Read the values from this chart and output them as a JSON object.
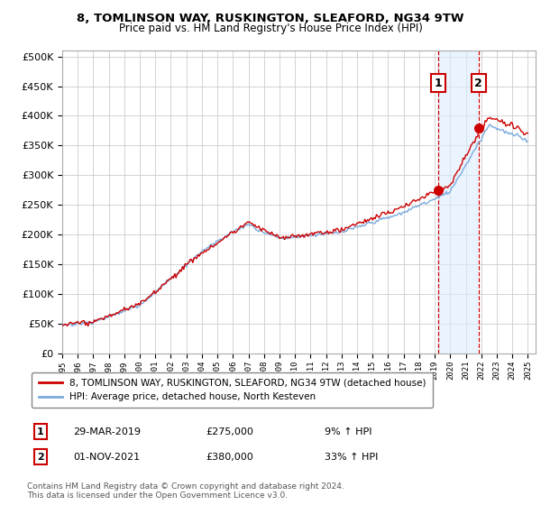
{
  "title1": "8, TOMLINSON WAY, RUSKINGTON, SLEAFORD, NG34 9TW",
  "title2": "Price paid vs. HM Land Registry's House Price Index (HPI)",
  "legend_line1": "8, TOMLINSON WAY, RUSKINGTON, SLEAFORD, NG34 9TW (detached house)",
  "legend_line2": "HPI: Average price, detached house, North Kesteven",
  "annotation1_label": "1",
  "annotation1_date": "29-MAR-2019",
  "annotation1_price": "£275,000",
  "annotation1_hpi": "9% ↑ HPI",
  "annotation2_label": "2",
  "annotation2_date": "01-NOV-2021",
  "annotation2_price": "£380,000",
  "annotation2_hpi": "33% ↑ HPI",
  "footnote": "Contains HM Land Registry data © Crown copyright and database right 2024.\nThis data is licensed under the Open Government Licence v3.0.",
  "sale1_year": 2019.23,
  "sale1_value": 275000,
  "sale2_year": 2021.83,
  "sale2_value": 380000,
  "red_color": "#cc0000",
  "blue_color": "#7aaadd",
  "shade_color": "#ddeeff",
  "grid_color": "#cccccc",
  "annotation_box_color": "#cc0000",
  "background_color": "#ffffff",
  "ylim_max": 510000,
  "xlim_min": 1995,
  "xlim_max": 2025.5
}
